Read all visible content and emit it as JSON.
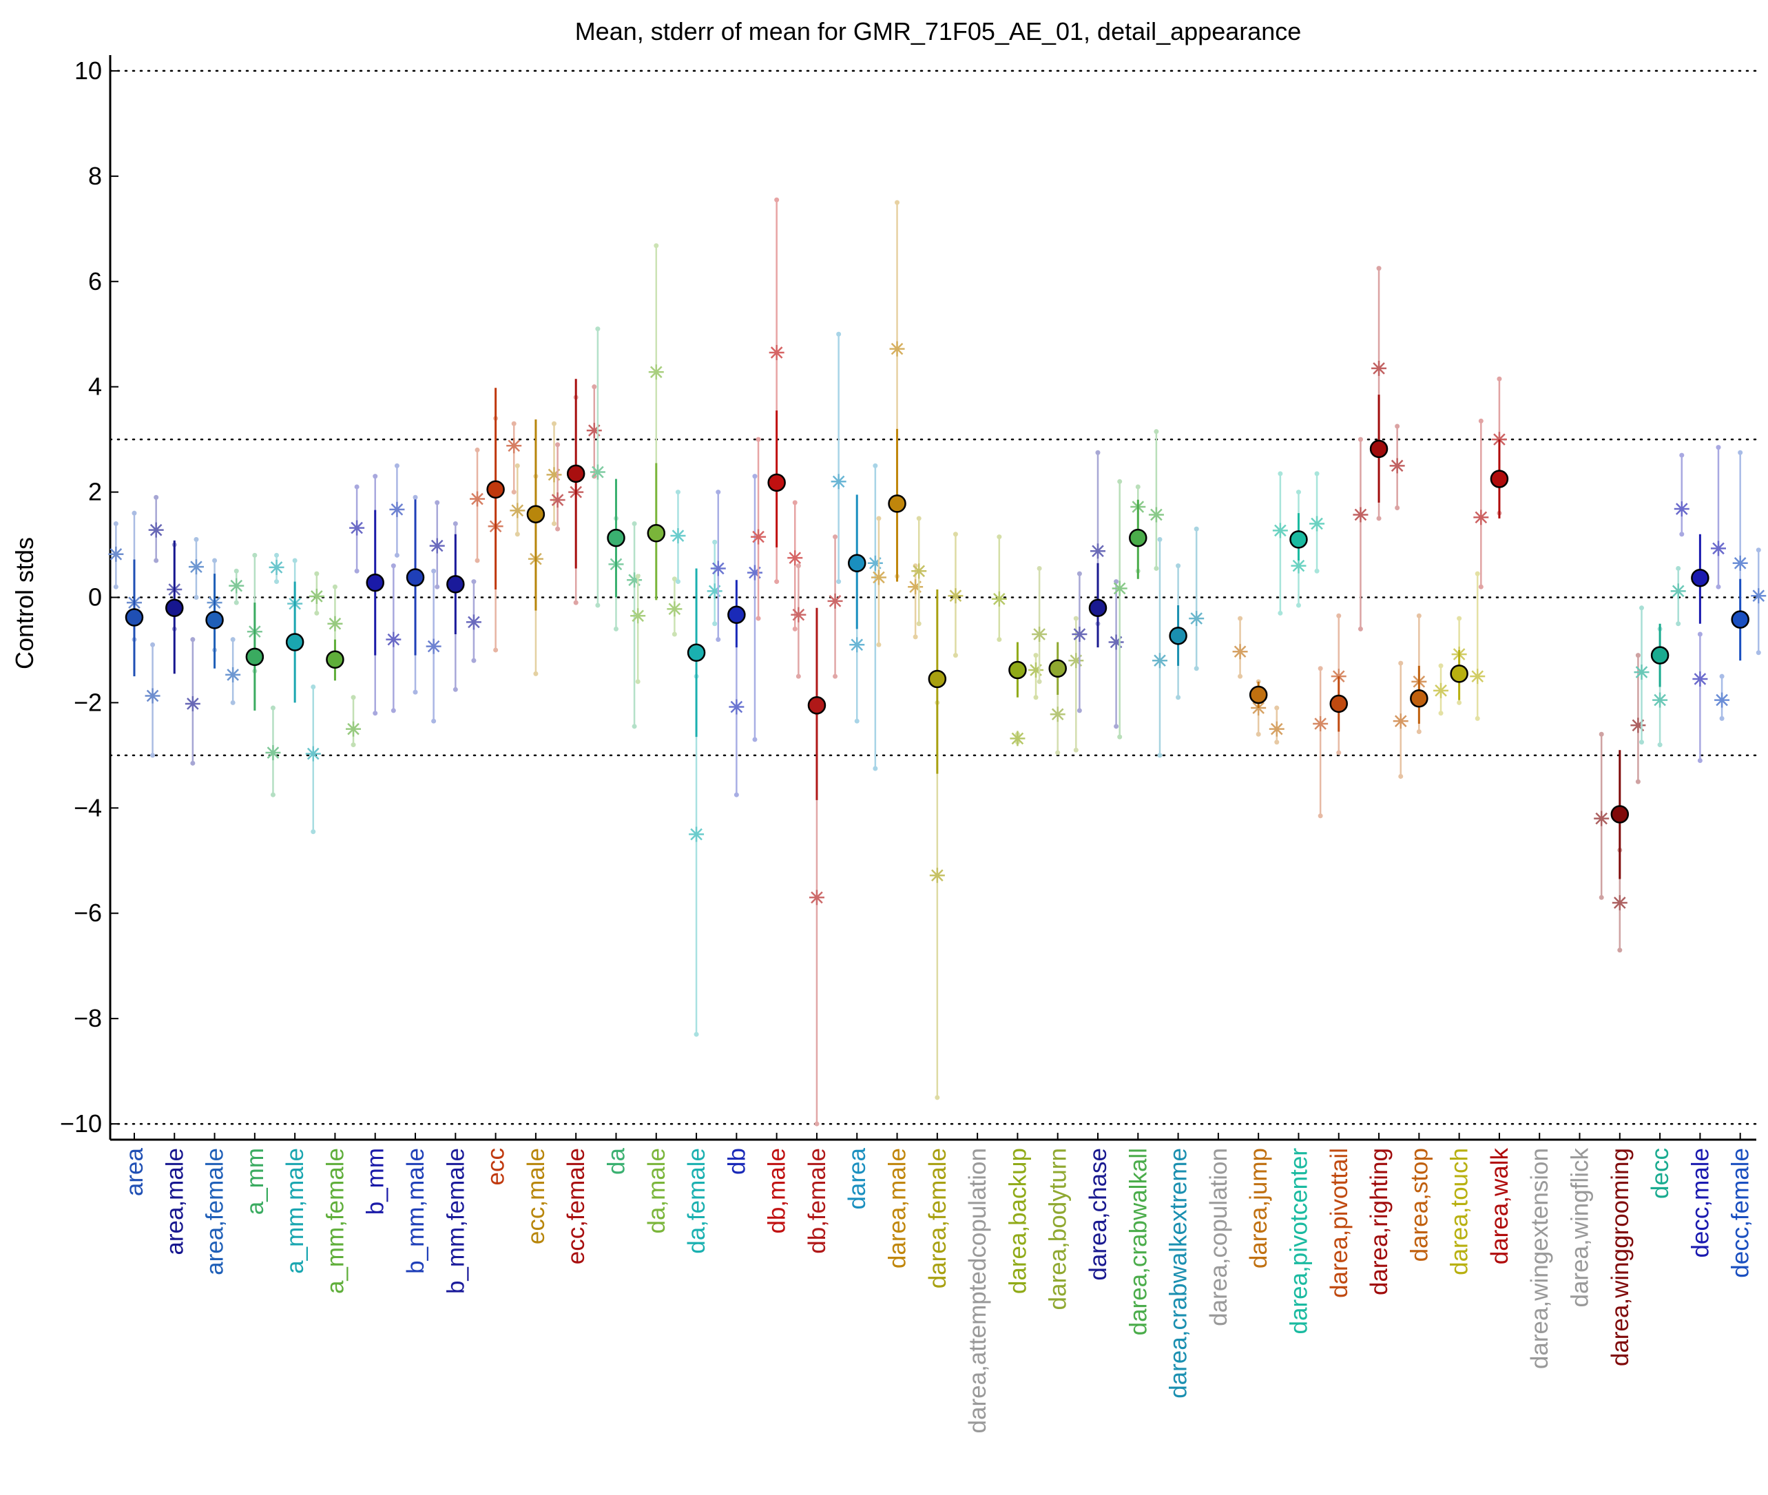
{
  "chart_data": {
    "type": "scatter",
    "title": "Mean, stderr of mean for GMR_71F05_AE_01, detail_appearance",
    "ylabel": "Control stds",
    "ylim": [
      -10.3,
      10.3
    ],
    "yticks": [
      10,
      8,
      6,
      4,
      2,
      0,
      -2,
      -4,
      -6,
      -8,
      -10
    ],
    "ytick_labels": [
      "10",
      "8",
      "6",
      "4",
      "2",
      "0",
      "−2",
      "−4",
      "−6",
      "−8",
      "−10"
    ],
    "reference_lines": [
      10,
      3,
      0,
      -3,
      -10
    ],
    "grid": false,
    "categories": [
      "area",
      "area,male",
      "area,female",
      "a_mm",
      "a_mm,male",
      "a_mm,female",
      "b_mm",
      "b_mm,male",
      "b_mm,female",
      "ecc",
      "ecc,male",
      "ecc,female",
      "da",
      "da,male",
      "da,female",
      "db",
      "db,male",
      "db,female",
      "darea",
      "darea,male",
      "darea,female",
      "darea,attemptedcopulation",
      "darea,backup",
      "darea,bodyturn",
      "darea,chase",
      "darea,crabwalkall",
      "darea,crabwalkextreme",
      "darea,copulation",
      "darea,jump",
      "darea,pivotcenter",
      "darea,pivottail",
      "darea,righting",
      "darea,stop",
      "darea,touch",
      "darea,walk",
      "darea,wingextension",
      "darea,wingflick",
      "darea,winggrooming",
      "decc",
      "decc,male",
      "decc,female"
    ],
    "category_colors": [
      "#1f4fb4",
      "#16168f",
      "#1f5fb8",
      "#3aab60",
      "#1aa6b0",
      "#5fae3a",
      "#1a1aa8",
      "#1f3fb8",
      "#1a1a9a",
      "#c0390e",
      "#b8860b",
      "#a80f0f",
      "#3ab070",
      "#7ab53a",
      "#1ab0b0",
      "#1a2ab8",
      "#c01010",
      "#b01818",
      "#1a8fbf",
      "#c0860b",
      "#a8a010",
      "#999999",
      "#90aa18",
      "#8fa830",
      "#1a1a90",
      "#4aac4a",
      "#1a8fb0",
      "#999999",
      "#c07010",
      "#1abaa0",
      "#c04a10",
      "#a00c0c",
      "#c0600e",
      "#b8b010",
      "#b00c0c",
      "#999999",
      "#999999",
      "#800a0a",
      "#1aab90",
      "#1a1ab0",
      "#1a4fc0"
    ],
    "series": [
      {
        "values": [
          -0.38,
          -0.2,
          -0.43,
          -1.13,
          -0.85,
          -1.18,
          0.28,
          0.38,
          0.25,
          2.05,
          1.58,
          2.35,
          1.13,
          1.22,
          -1.05,
          -0.33,
          2.18,
          -2.05,
          0.65,
          1.78,
          -1.55,
          null,
          -1.38,
          -1.35,
          -0.2,
          1.13,
          -0.73,
          null,
          -1.85,
          1.1,
          -2.02,
          2.82,
          -1.92,
          -1.45,
          2.25,
          null,
          null,
          -4.12,
          -1.1,
          0.37,
          -0.42
        ],
        "stderr_low": [
          -1.5,
          -1.45,
          -1.35,
          -2.15,
          -2.0,
          -1.58,
          -1.1,
          -1.1,
          -0.7,
          0.15,
          -0.25,
          0.55,
          0.0,
          -0.05,
          -2.65,
          -0.95,
          0.95,
          -3.85,
          -0.6,
          0.3,
          -3.35,
          null,
          -1.9,
          -1.85,
          -0.95,
          0.35,
          -1.3,
          null,
          -2.1,
          0.7,
          -2.55,
          1.8,
          -2.4,
          -1.95,
          1.5,
          null,
          null,
          -5.35,
          -1.7,
          -0.5,
          -1.2
        ],
        "stderr_high": [
          0.72,
          1.08,
          0.45,
          -0.1,
          0.3,
          -0.8,
          1.66,
          1.86,
          1.2,
          3.98,
          3.38,
          4.15,
          2.25,
          2.55,
          0.55,
          0.33,
          3.55,
          -0.2,
          1.95,
          3.2,
          0.15,
          null,
          -0.85,
          -0.85,
          0.65,
          1.85,
          -0.15,
          null,
          -1.6,
          1.6,
          -1.5,
          3.85,
          -1.3,
          -1.0,
          3.0,
          null,
          null,
          -2.9,
          -0.5,
          1.2,
          0.35
        ]
      }
    ],
    "subgroup_markers": [
      {
        "category": "area",
        "values": [
          0.82,
          -0.1,
          -1.87
        ],
        "ranges": [
          [
            0.2,
            1.4
          ],
          [
            -0.8,
            1.6
          ],
          [
            -3.0,
            -0.9
          ]
        ]
      },
      {
        "category": "area,male",
        "values": [
          1.28,
          0.15,
          -2.02
        ],
        "ranges": [
          [
            0.7,
            1.9
          ],
          [
            -0.6,
            1.0
          ],
          [
            -3.15,
            -0.8
          ]
        ]
      },
      {
        "category": "area,female",
        "values": [
          0.58,
          -0.1,
          -1.47
        ],
        "ranges": [
          [
            0.0,
            1.1
          ],
          [
            -1.0,
            0.7
          ],
          [
            -2.0,
            -0.8
          ]
        ]
      },
      {
        "category": "a_mm",
        "values": [
          0.22,
          -0.65,
          -2.95
        ],
        "ranges": [
          [
            -0.1,
            0.5
          ],
          [
            -1.4,
            0.8
          ],
          [
            -3.75,
            -2.1
          ]
        ]
      },
      {
        "category": "a_mm,male",
        "values": [
          0.57,
          -0.12,
          -2.97
        ],
        "ranges": [
          [
            0.3,
            0.8
          ],
          [
            -0.9,
            0.7
          ],
          [
            -4.45,
            -1.7
          ]
        ]
      },
      {
        "category": "a_mm,female",
        "values": [
          0.02,
          -0.5,
          -2.5
        ],
        "ranges": [
          [
            -0.3,
            0.45
          ],
          [
            -1.2,
            0.2
          ],
          [
            -2.8,
            -1.9
          ]
        ]
      },
      {
        "category": "b_mm",
        "values": [
          1.32,
          0.3,
          -0.8
        ],
        "ranges": [
          [
            0.5,
            2.1
          ],
          [
            -2.2,
            2.3
          ],
          [
            -2.15,
            0.6
          ]
        ]
      },
      {
        "category": "b_mm,male",
        "values": [
          1.67,
          0.4,
          -0.93
        ],
        "ranges": [
          [
            0.8,
            2.5
          ],
          [
            -1.8,
            1.9
          ],
          [
            -2.35,
            0.5
          ]
        ]
      },
      {
        "category": "b_mm,female",
        "values": [
          0.98,
          0.25,
          -0.47
        ],
        "ranges": [
          [
            0.2,
            1.8
          ],
          [
            -1.75,
            1.4
          ],
          [
            -1.2,
            0.3
          ]
        ]
      },
      {
        "category": "ecc",
        "values": [
          1.87,
          1.35,
          2.88
        ],
        "ranges": [
          [
            0.7,
            2.8
          ],
          [
            -1.0,
            3.4
          ],
          [
            2.0,
            3.3
          ]
        ]
      },
      {
        "category": "ecc,male",
        "values": [
          1.65,
          0.73,
          2.33
        ],
        "ranges": [
          [
            1.2,
            2.5
          ],
          [
            -1.45,
            2.3
          ],
          [
            1.4,
            3.3
          ]
        ]
      },
      {
        "category": "ecc,female",
        "values": [
          1.85,
          2.0,
          3.17
        ],
        "ranges": [
          [
            1.3,
            2.9
          ],
          [
            -0.1,
            3.8
          ],
          [
            2.3,
            4.0
          ]
        ]
      },
      {
        "category": "da",
        "values": [
          2.38,
          0.63,
          0.33
        ],
        "ranges": [
          [
            -0.15,
            5.1
          ],
          [
            -0.6,
            1.5
          ],
          [
            -2.45,
            1.4
          ]
        ]
      },
      {
        "category": "da,male",
        "values": [
          -0.35,
          4.28,
          -0.22
        ],
        "ranges": [
          [
            -1.6,
            0.4
          ],
          [
            1.1,
            6.68
          ],
          [
            -0.7,
            0.35
          ]
        ]
      },
      {
        "category": "da,female",
        "values": [
          1.17,
          -4.5,
          0.12
        ],
        "ranges": [
          [
            0.3,
            2.0
          ],
          [
            -8.3,
            -1.5
          ],
          [
            -0.5,
            1.05
          ]
        ]
      },
      {
        "category": "db",
        "values": [
          0.55,
          -2.08,
          0.47
        ],
        "ranges": [
          [
            -0.8,
            2.0
          ],
          [
            -3.75,
            -0.3
          ],
          [
            -2.7,
            2.3
          ]
        ]
      },
      {
        "category": "db,male",
        "values": [
          1.15,
          4.65,
          0.75
        ],
        "ranges": [
          [
            -0.4,
            3.0
          ],
          [
            0.3,
            7.55
          ],
          [
            -0.6,
            1.8
          ]
        ]
      },
      {
        "category": "db,female",
        "values": [
          -0.33,
          -5.7,
          -0.07
        ],
        "ranges": [
          [
            -1.5,
            0.6
          ],
          [
            -10.0,
            -2.2
          ],
          [
            -1.5,
            1.15
          ]
        ]
      },
      {
        "category": "darea",
        "values": [
          2.2,
          -0.9,
          0.65
        ],
        "ranges": [
          [
            0.3,
            5.0
          ],
          [
            -2.35,
            0.5
          ],
          [
            -3.25,
            2.5
          ]
        ]
      },
      {
        "category": "darea,male",
        "values": [
          0.38,
          4.72,
          0.2
        ],
        "ranges": [
          [
            -0.9,
            1.5
          ],
          [
            0.4,
            7.5
          ],
          [
            -0.75,
            0.6
          ]
        ]
      },
      {
        "category": "darea,female",
        "values": [
          0.5,
          -5.28,
          0.03
        ],
        "ranges": [
          [
            -0.5,
            1.5
          ],
          [
            -9.5,
            -2.0
          ],
          [
            -1.1,
            1.2
          ]
        ]
      },
      {
        "category": "darea,backup",
        "values": [
          -0.03,
          -2.68,
          -1.38
        ],
        "ranges": [
          [
            -0.8,
            1.15
          ],
          [
            -2.75,
            -2.6
          ],
          [
            -1.9,
            -1.1
          ]
        ]
      },
      {
        "category": "darea,bodyturn",
        "values": [
          -0.7,
          -2.22,
          -1.2
        ],
        "ranges": [
          [
            -1.6,
            0.55
          ],
          [
            -2.95,
            -1.5
          ],
          [
            -2.9,
            -0.4
          ]
        ]
      },
      {
        "category": "darea,chase",
        "values": [
          -0.7,
          0.88,
          -0.85
        ],
        "ranges": [
          [
            -2.15,
            0.45
          ],
          [
            -0.5,
            2.75
          ],
          [
            -2.45,
            0.3
          ]
        ]
      },
      {
        "category": "darea,crabwalkall",
        "values": [
          0.17,
          1.72,
          1.57
        ],
        "ranges": [
          [
            -2.65,
            2.2
          ],
          [
            0.5,
            2.1
          ],
          [
            0.55,
            3.15
          ]
        ]
      },
      {
        "category": "darea,crabwalkextreme",
        "values": [
          -1.2,
          -0.7,
          -0.4
        ],
        "ranges": [
          [
            -3.0,
            1.1
          ],
          [
            -1.9,
            0.6
          ],
          [
            -1.35,
            1.3
          ]
        ]
      },
      {
        "category": "darea,jump",
        "values": [
          -1.03,
          -2.1,
          -2.5
        ],
        "ranges": [
          [
            -1.5,
            -0.4
          ],
          [
            -2.6,
            -1.6
          ],
          [
            -2.75,
            -2.1
          ]
        ]
      },
      {
        "category": "darea,pivotcenter",
        "values": [
          1.27,
          0.6,
          1.4
        ],
        "ranges": [
          [
            -0.3,
            2.35
          ],
          [
            -0.15,
            2.0
          ],
          [
            0.5,
            2.35
          ]
        ]
      },
      {
        "category": "darea,pivottail",
        "values": [
          -2.4,
          -1.5,
          null
        ],
        "ranges": [
          [
            -4.15,
            -1.35
          ],
          [
            -2.95,
            -0.35
          ],
          null
        ]
      },
      {
        "category": "darea,righting",
        "values": [
          1.57,
          4.35,
          2.5
        ],
        "ranges": [
          [
            -0.6,
            3.0
          ],
          [
            1.5,
            6.25
          ],
          [
            1.7,
            3.25
          ]
        ]
      },
      {
        "category": "darea,stop",
        "values": [
          -2.35,
          -1.6,
          null
        ],
        "ranges": [
          [
            -3.4,
            -1.25
          ],
          [
            -2.55,
            -0.35
          ],
          null
        ]
      },
      {
        "category": "darea,touch",
        "values": [
          -1.77,
          -1.08,
          -1.5
        ],
        "ranges": [
          [
            -2.2,
            -1.3
          ],
          [
            -2.0,
            -0.4
          ],
          [
            -2.3,
            0.45
          ]
        ]
      },
      {
        "category": "darea,walk",
        "values": [
          1.52,
          3.0,
          null
        ],
        "ranges": [
          [
            0.2,
            3.35
          ],
          [
            1.6,
            4.15
          ],
          null
        ]
      },
      {
        "category": "darea,winggrooming",
        "values": [
          -4.2,
          -5.8,
          -2.43
        ],
        "ranges": [
          [
            -5.7,
            -2.6
          ],
          [
            -6.7,
            -4.8
          ],
          [
            -3.5,
            -1.1
          ]
        ]
      },
      {
        "category": "decc",
        "values": [
          -1.42,
          -1.95,
          0.12
        ],
        "ranges": [
          [
            -2.75,
            -0.2
          ],
          [
            -2.8,
            -0.6
          ],
          [
            -0.5,
            0.55
          ]
        ]
      },
      {
        "category": "decc,male",
        "values": [
          1.68,
          -1.55,
          0.93
        ],
        "ranges": [
          [
            1.2,
            2.7
          ],
          [
            -3.1,
            -0.7
          ],
          [
            0.2,
            2.85
          ]
        ]
      },
      {
        "category": "decc,female",
        "values": [
          -1.95,
          0.65,
          0.03
        ],
        "ranges": [
          [
            -2.3,
            -1.5
          ],
          [
            -0.4,
            2.75
          ],
          [
            -1.05,
            0.9
          ]
        ]
      }
    ]
  }
}
